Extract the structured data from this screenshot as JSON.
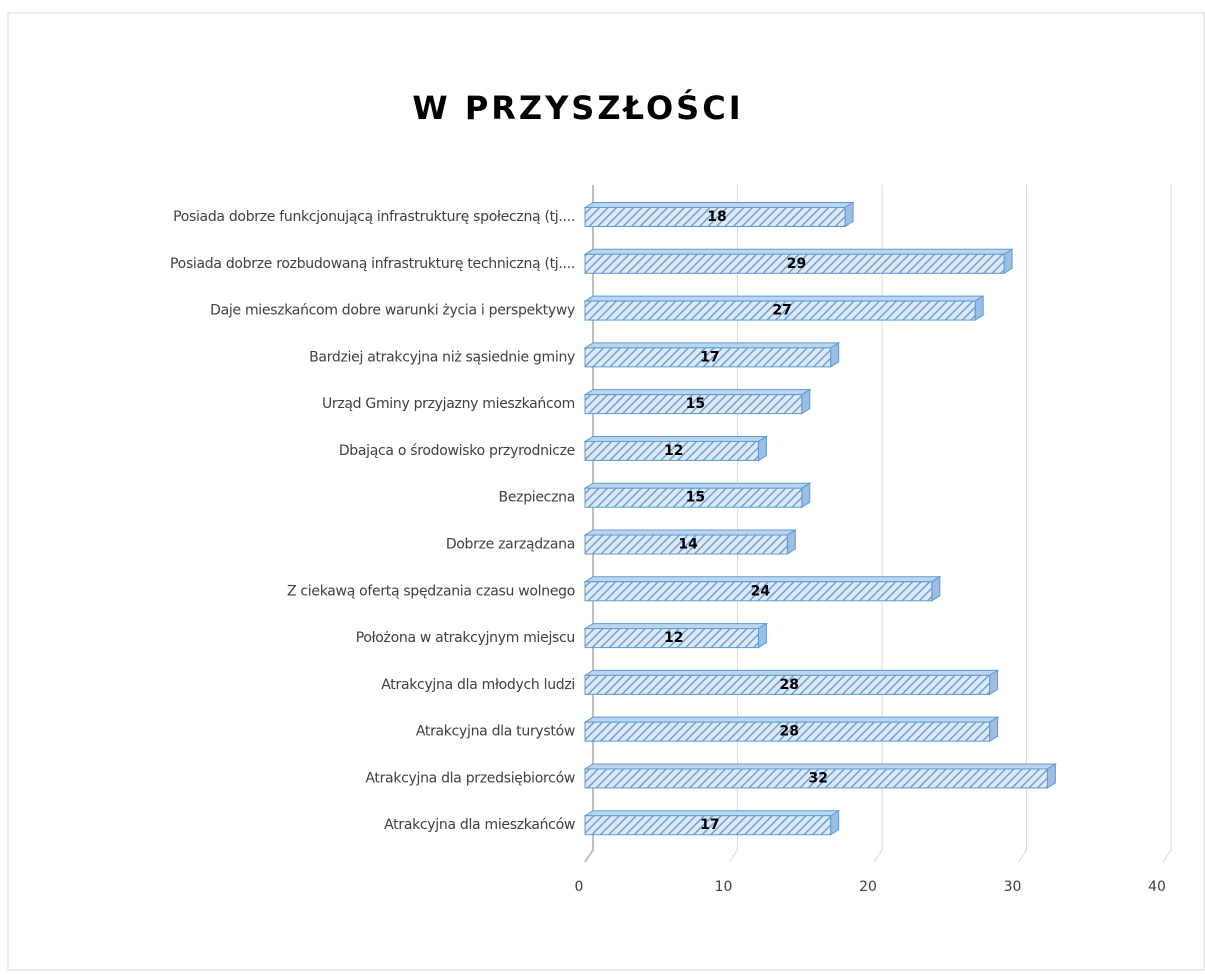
{
  "chart_data": {
    "type": "bar",
    "title": "W PRZYSZŁOŚCI",
    "categories": [
      "Posiada dobrze funkcjonującą infrastrukturę społeczną (tj....",
      "Posiada dobrze rozbudowaną infrastrukturę techniczną (tj....",
      "Daje mieszkańcom dobre warunki życia i perspektywy",
      "Bardziej atrakcyjna niż sąsiednie gminy",
      "Urząd Gminy przyjazny mieszkańcom",
      "Dbająca o środowisko przyrodnicze",
      "Bezpieczna",
      "Dobrze zarządzana",
      "Z ciekawą ofertą spędzania czasu wolnego",
      "Położona w atrakcyjnym miejscu",
      "Atrakcyjna dla młodych ludzi",
      "Atrakcyjna dla turystów",
      "Atrakcyjna dla przedsiębiorców",
      "Atrakcyjna dla mieszkańców"
    ],
    "values": [
      18,
      29,
      27,
      17,
      15,
      12,
      15,
      14,
      24,
      12,
      28,
      28,
      32,
      17
    ],
    "color": "#5b9bd5",
    "xlim": [
      0,
      40
    ],
    "xticks": [
      0,
      10,
      20,
      30,
      40
    ],
    "grid": true
  }
}
